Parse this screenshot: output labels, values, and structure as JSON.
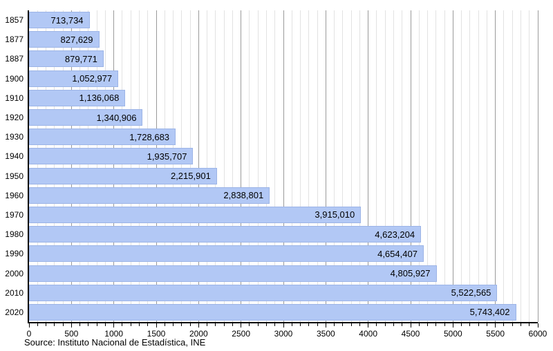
{
  "chart_data": {
    "type": "bar",
    "orientation": "horizontal",
    "title": "",
    "xlabel": "",
    "ylabel": "",
    "legend": false,
    "grid": true,
    "categories": [
      "1857",
      "1877",
      "1887",
      "1900",
      "1910",
      "1920",
      "1930",
      "1940",
      "1950",
      "1960",
      "1970",
      "1980",
      "1990",
      "2000",
      "2010",
      "2020"
    ],
    "values": [
      713734,
      827629,
      879771,
      1052977,
      1136068,
      1340906,
      1728683,
      1935707,
      2215901,
      2838801,
      3915010,
      4623204,
      4654407,
      4805927,
      5522565,
      5743402
    ],
    "value_labels": [
      "713,734",
      "827,629",
      "879,771",
      "1,052,977",
      "1,136,068",
      "1,340,906",
      "1,728,683",
      "1,935,707",
      "2,215,901",
      "2,838,801",
      "3,915,010",
      "4,623,204",
      "4,654,407",
      "4,805,927",
      "5,522,565",
      "5,743,402"
    ],
    "x_axis": {
      "min": 0,
      "max": 6000,
      "unit_divisor": 1000,
      "minor_step": 100,
      "major_step": 500,
      "tick_labels": [
        "0",
        "500",
        "1000",
        "1500",
        "2000",
        "2500",
        "3000",
        "3500",
        "4000",
        "4500",
        "5000",
        "5500",
        "6000"
      ]
    },
    "source": "Source: Instituto Nacional de Estadística, INE",
    "colors": {
      "bar_fill": "#b2c8f5",
      "bar_border": "#9cb4e6",
      "grid_minor": "#e2e2e2",
      "grid_major": "#9a9a9a",
      "axis": "#000000",
      "text": "#000000"
    }
  }
}
